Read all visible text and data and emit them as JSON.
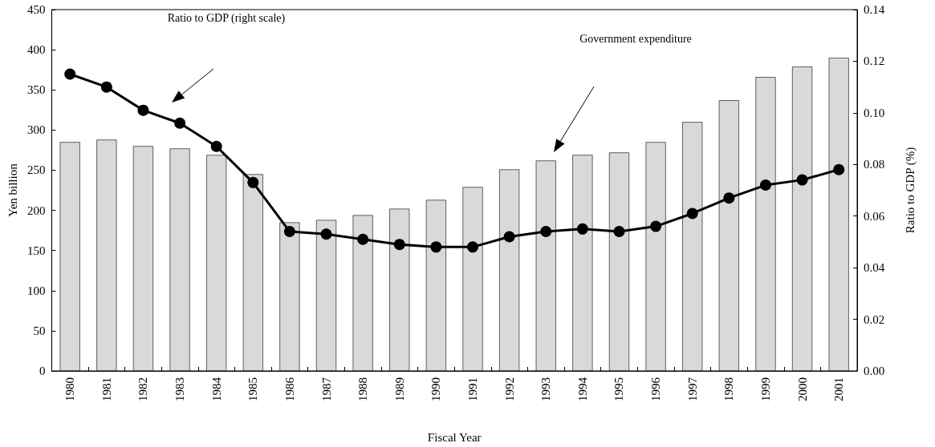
{
  "chart_data": {
    "type": "bar",
    "xlabel": "Fiscal Year",
    "ylabel": "Yen billion",
    "y2label": "Ratio to GDP (%)",
    "categories": [
      "1980",
      "1981",
      "1982",
      "1983",
      "1984",
      "1985",
      "1986",
      "1987",
      "1988",
      "1989",
      "1990",
      "1991",
      "1992",
      "1993",
      "1994",
      "1995",
      "1996",
      "1997",
      "1998",
      "1999",
      "2000",
      "2001"
    ],
    "series": [
      {
        "color": "#d9d9d9",
        "values": [
          285,
          288,
          280,
          277,
          269,
          245,
          185,
          188,
          194,
          202,
          213,
          229,
          251,
          262,
          269,
          272,
          285,
          310,
          337,
          366,
          379,
          390
        ]
      },
      {
        "type": "line",
        "axis": "y2",
        "color": "#000000",
        "marker": "circle",
        "values": [
          0.115,
          0.11,
          0.101,
          0.096,
          0.087,
          0.073,
          0.054,
          0.053,
          0.051,
          0.049,
          0.048,
          0.048,
          0.052,
          0.054,
          0.055,
          0.054,
          0.056,
          0.061,
          0.067,
          0.072,
          0.074,
          0.078
        ]
      }
    ],
    "ylim": [
      0,
      450
    ],
    "yticks": [
      0,
      50,
      100,
      150,
      200,
      250,
      300,
      350,
      400,
      450
    ],
    "y2lim": [
      0,
      0.14
    ],
    "y2ticks": [
      {
        "value": 0,
        "label": "0.00"
      },
      {
        "value": 0.02,
        "label": "0.02"
      },
      {
        "value": 0.04,
        "label": "0.04"
      },
      {
        "value": 0.06,
        "label": "0.06"
      },
      {
        "value": 0.08,
        "label": "0.08"
      },
      {
        "value": 0.1,
        "label": "0.10"
      },
      {
        "value": 0.12,
        "label": "0.12"
      },
      {
        "value": 0.14,
        "label": "0.14"
      }
    ],
    "annotations": [
      "Ratio to GDP (right scale)",
      "Government expenditure"
    ],
    "grid": false
  }
}
